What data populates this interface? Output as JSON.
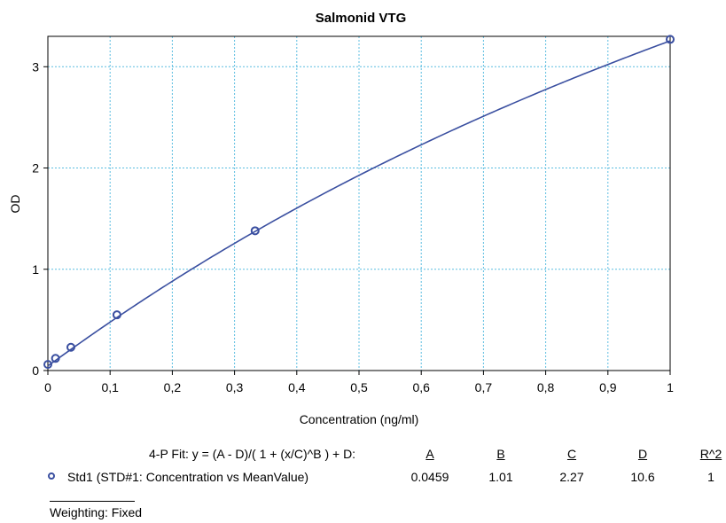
{
  "chart_data": {
    "type": "scatter",
    "title": "Salmonid VTG",
    "xlabel": "Concentration (ng/ml)",
    "ylabel": "OD",
    "xlim": [
      0,
      1
    ],
    "ylim": [
      0,
      3.3
    ],
    "x_ticks": [
      "0",
      "0,1",
      "0,2",
      "0,3",
      "0,4",
      "0,5",
      "0,6",
      "0,7",
      "0,8",
      "0,9",
      "1"
    ],
    "y_ticks": [
      "0",
      "1",
      "2",
      "3"
    ],
    "grid": true,
    "series": [
      {
        "name": "Std1 (STD#1: Concentration vs MeanValue)",
        "x": [
          0,
          0.0123,
          0.037,
          0.111,
          0.333,
          1.0
        ],
        "y": [
          0.06,
          0.12,
          0.23,
          0.55,
          1.38,
          3.27
        ],
        "fit": {
          "type": "4-P",
          "A": 0.0459,
          "B": 1.01,
          "C": 2.27,
          "D": 10.6
        }
      }
    ],
    "colors": {
      "points": "#3a4fa0",
      "curve": "#3a4fa0",
      "grid": "#5bbde0"
    }
  },
  "fit_table": {
    "equation": "4-P Fit: y = (A - D)/( 1 + (x/C)^B ) + D:",
    "headers": [
      "A",
      "B",
      "C",
      "D",
      "R^2"
    ],
    "row_label": "Std1 (STD#1: Concentration vs MeanValue)",
    "values": [
      "0.0459",
      "1.01",
      "2.27",
      "10.6",
      "1"
    ]
  },
  "weighting": "Weighting: Fixed"
}
